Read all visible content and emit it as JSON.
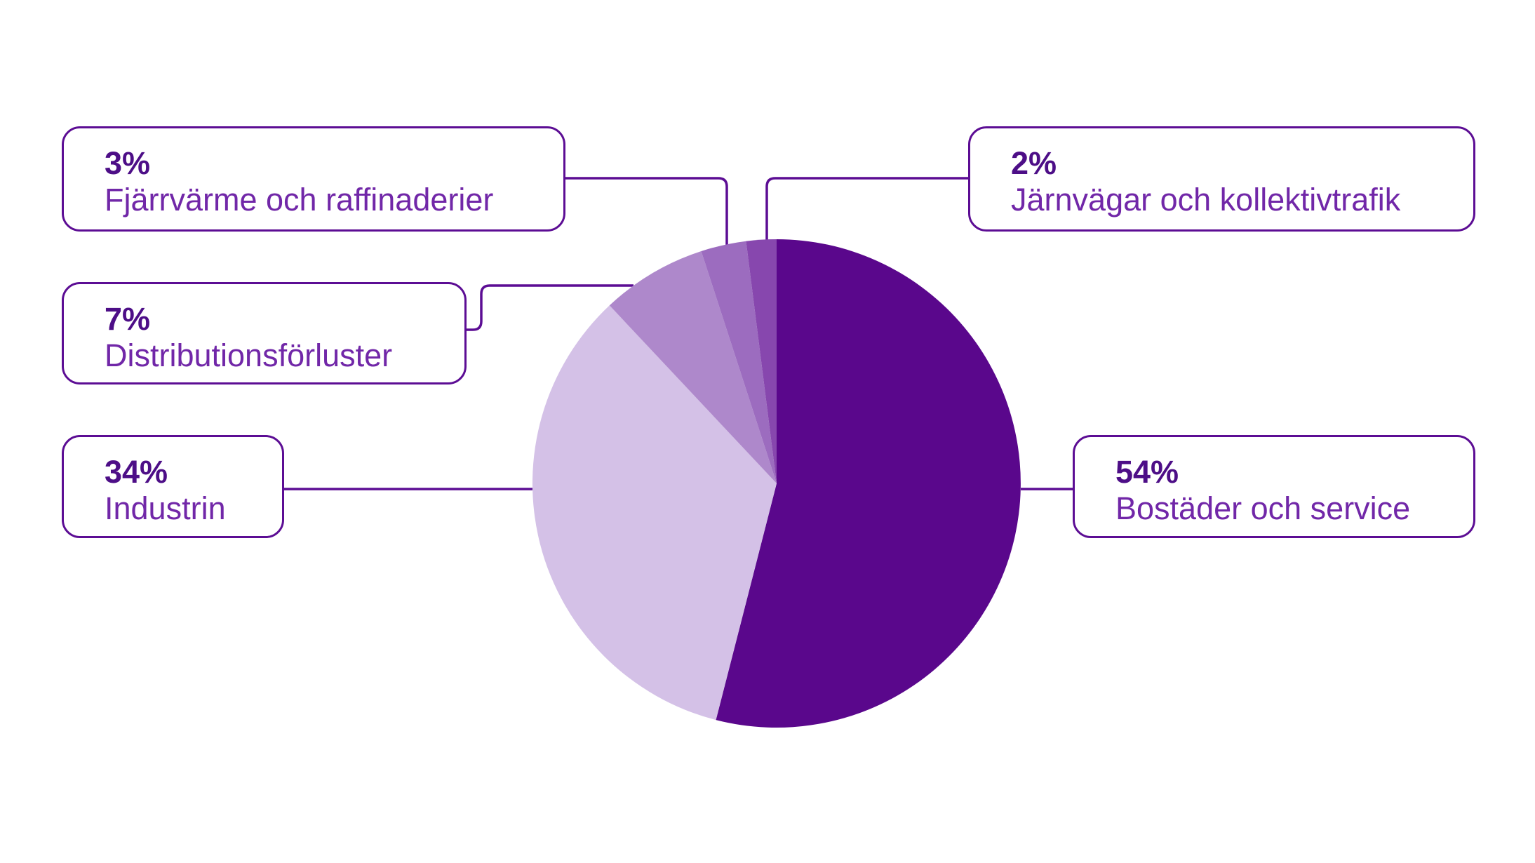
{
  "chart_data": {
    "type": "pie",
    "title": "",
    "unit": "%",
    "direction": "clockwise",
    "start_angle_deg": 0,
    "legend_position": "callout-boxes",
    "slices": [
      {
        "label": "Bostäder och service",
        "value": 54,
        "value_label": "54%",
        "color": "#5A078C"
      },
      {
        "label": "Industrin",
        "value": 34,
        "value_label": "34%",
        "color": "#D4C1E7"
      },
      {
        "label": "Distributionsförluster",
        "value": 7,
        "value_label": "7%",
        "color": "#AE88CB"
      },
      {
        "label": "Fjärrvärme och raffinaderier",
        "value": 3,
        "value_label": "3%",
        "color": "#9C6CBF"
      },
      {
        "label": "Järnvägar och kollektivtrafik",
        "value": 2,
        "value_label": "2%",
        "color": "#8747AE"
      }
    ]
  },
  "style": {
    "background": "#FFFFFF",
    "border_color": "#5C0D94",
    "percent_text_color": "#4D0E87",
    "label_text_color": "#7127A8"
  }
}
